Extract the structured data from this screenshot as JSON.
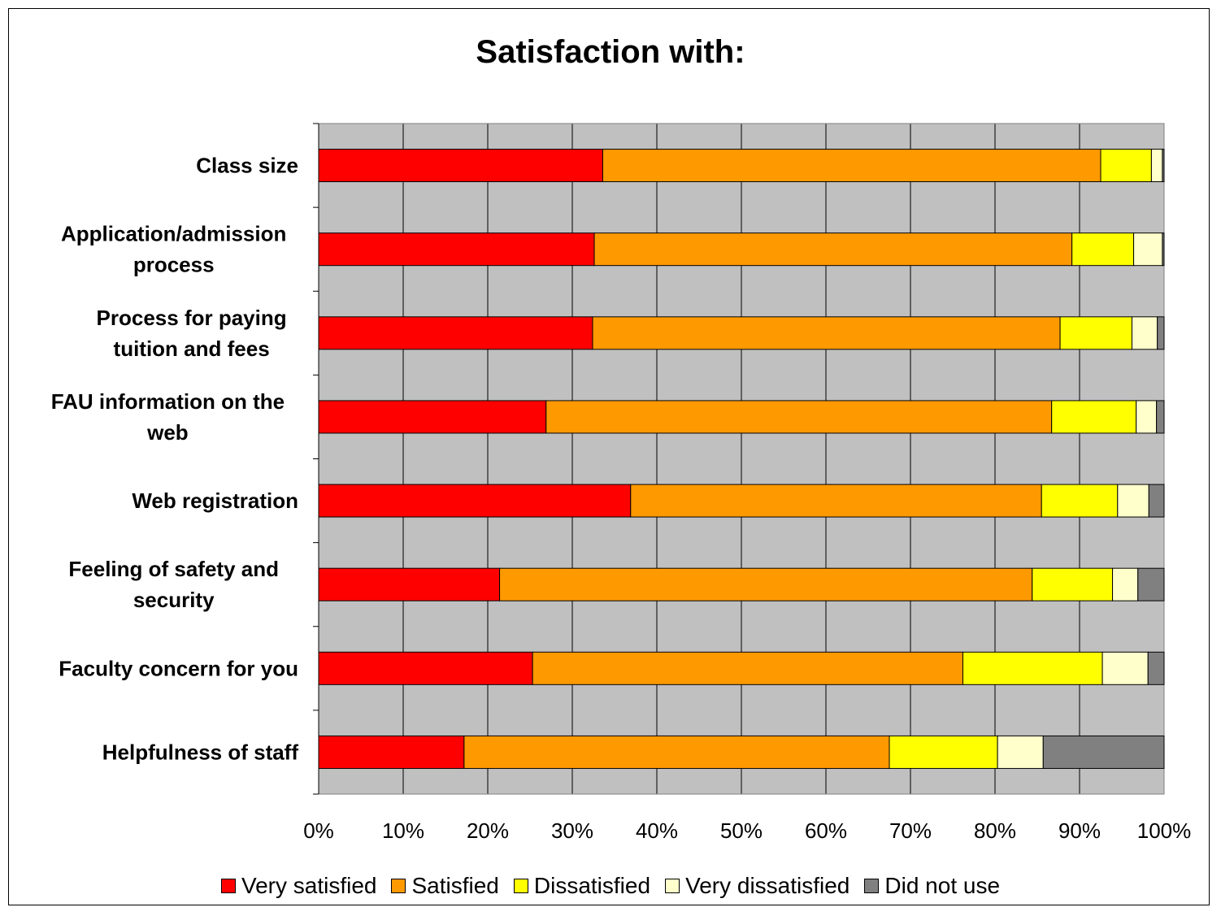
{
  "chart_data": {
    "type": "bar",
    "orientation": "horizontal",
    "stacked": "percent",
    "title": "Satisfaction with:",
    "categories": [
      [
        "Class size"
      ],
      [
        "Application/admission",
        "process"
      ],
      [
        "Process for paying",
        "tuition and fees"
      ],
      [
        "FAU information on the",
        "web"
      ],
      [
        "Web registration"
      ],
      [
        "Feeling of safety and",
        "security"
      ],
      [
        "Faculty concern for you"
      ],
      [
        "Helpfulness of staff"
      ]
    ],
    "series": [
      {
        "name": "Very satisfied",
        "color": "#ff0000",
        "values": [
          33.6,
          32.6,
          32.4,
          26.9,
          36.9,
          21.4,
          25.3,
          17.2
        ]
      },
      {
        "name": "Satisfied",
        "color": "#ff9900",
        "values": [
          58.9,
          56.5,
          55.3,
          59.8,
          48.6,
          63.0,
          50.9,
          50.3
        ]
      },
      {
        "name": "Dissatisfied",
        "color": "#ffff00",
        "values": [
          6.0,
          7.3,
          8.5,
          10.0,
          9.0,
          9.5,
          16.5,
          12.8
        ]
      },
      {
        "name": "Very dissatisfied",
        "color": "#ffffcc",
        "values": [
          1.3,
          3.4,
          3.0,
          2.4,
          3.7,
          3.0,
          5.4,
          5.4
        ]
      },
      {
        "name": "Did not use",
        "color": "#808080",
        "values": [
          0.2,
          0.2,
          0.8,
          0.9,
          1.8,
          3.1,
          1.9,
          14.3
        ]
      }
    ],
    "x_ticks": [
      "0%",
      "10%",
      "20%",
      "30%",
      "40%",
      "50%",
      "60%",
      "70%",
      "80%",
      "90%",
      "100%"
    ],
    "xlim": [
      0,
      100
    ],
    "plot_background": "#c0c0c0",
    "grid": true,
    "legend_position": "bottom"
  }
}
